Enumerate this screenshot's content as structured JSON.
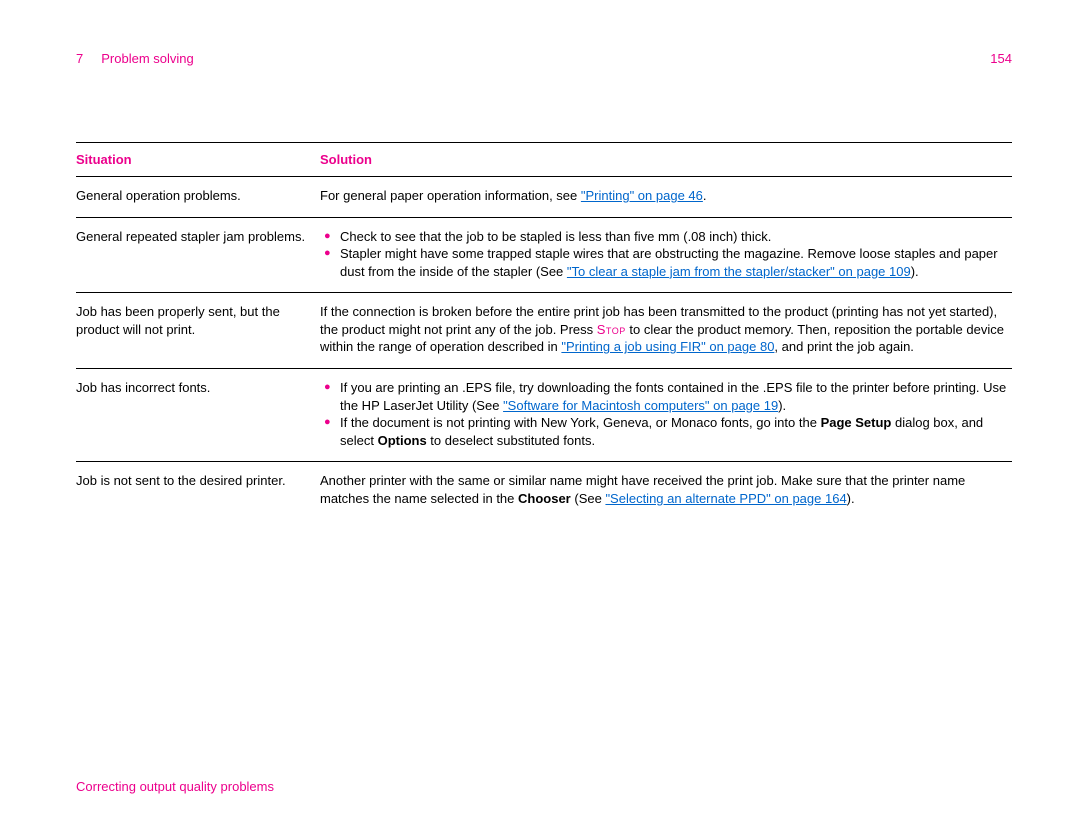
{
  "header": {
    "chapter_num": "7",
    "chapter_title": "Problem solving",
    "page_num": "154"
  },
  "table": {
    "col1": "Situation",
    "col2": "Solution"
  },
  "rows": {
    "r1": {
      "situation": "General operation problems.",
      "sol_pre": "For general paper operation information, see ",
      "sol_link": "\"Printing\" on page 46",
      "sol_post": "."
    },
    "r2": {
      "situation": "General repeated stapler jam problems.",
      "b1": "Check to see that the job to be stapled is less than five mm (.08 inch) thick.",
      "b2_pre": "Stapler might have some trapped staple wires that are obstructing the magazine. Remove loose staples and paper dust from the inside of the stapler (See ",
      "b2_link": "\"To clear a staple jam from the stapler/stacker\" on page 109",
      "b2_post": ")."
    },
    "r3": {
      "situation": "Job has been properly sent, but the product will not print.",
      "p1": "If the connection is broken before the entire print job has been transmitted to the product (printing has not yet started), the product might not print any of the job. Press ",
      "stop": "Stop",
      "p2": " to clear the product memory. Then, reposition the portable device within the range of operation described in ",
      "link": "\"Printing a job using FIR\" on page 80",
      "p3": ", and print the job again."
    },
    "r4": {
      "situation": "Job has incorrect fonts.",
      "b1_pre": "If you are printing an .EPS file, try downloading the fonts contained in the .EPS file to the printer before printing. Use the HP LaserJet Utility (See ",
      "b1_link": "\"Software for Macintosh computers\" on page 19",
      "b1_post": ").",
      "b2_pre": "If the document is not printing with New York, Geneva, or Monaco fonts, go into the ",
      "b2_bold1": "Page Setup",
      "b2_mid": " dialog box, and select ",
      "b2_bold2": "Options",
      "b2_post": " to deselect substituted fonts."
    },
    "r5": {
      "situation": "Job is not sent to the desired printer.",
      "p1": "Another printer with the same or similar name might have received the print job. Make sure that the printer name matches the name selected in the ",
      "bold": "Chooser",
      "p2": " (See ",
      "link": "\"Selecting an alternate PPD\" on page 164",
      "p3": ")."
    }
  },
  "footer": "Correcting output quality problems"
}
